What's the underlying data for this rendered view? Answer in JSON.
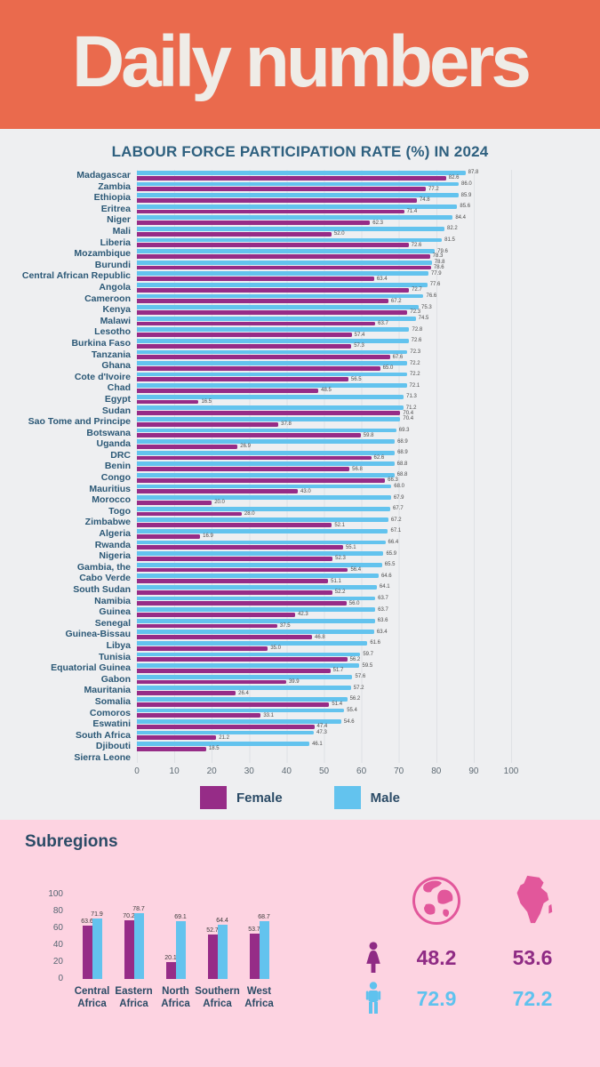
{
  "header": {
    "title": "Daily numbers"
  },
  "colors": {
    "banner_orange": "#EA6A4D",
    "female": "#962C87",
    "male": "#63C3EE",
    "chart_bg": "#EEEFF1",
    "pink_bg": "#FDD3E1",
    "icon_pink": "#E2579B",
    "heading_blue": "#2B4B66"
  },
  "icons": {
    "globe-icon": "globe with landmasses",
    "africa-icon": "africa continent silhouette",
    "woman-icon": "female pictogram",
    "man-icon": "male pictogram"
  },
  "chart_data": [
    {
      "type": "bar",
      "orientation": "horizontal",
      "title": "LABOUR FORCE PARTICIPATION RATE (%) IN 2024",
      "xlim": [
        0,
        100
      ],
      "x_ticks": [
        0,
        10,
        20,
        30,
        40,
        50,
        60,
        70,
        80,
        90,
        100
      ],
      "grid": true,
      "legend_position": "bottom",
      "categories": [
        "Madagascar",
        "Zambia",
        "Ethiopia",
        "Eritrea",
        "Niger",
        "Mali",
        "Liberia",
        "Mozambique",
        "Burundi",
        "Central African Republic",
        "Angola",
        "Cameroon",
        "Kenya",
        "Malawi",
        "Lesotho",
        "Burkina Faso",
        "Tanzania",
        "Ghana",
        "Cote d'Ivoire",
        "Chad",
        "Egypt",
        "Sudan",
        "Sao Tome and Principe",
        "Botswana",
        "Uganda",
        "DRC",
        "Benin",
        "Congo",
        "Mauritius",
        "Morocco",
        "Togo",
        "Zimbabwe",
        "Algeria",
        "Rwanda",
        "Nigeria",
        "Gambia, the",
        "Cabo Verde",
        "South Sudan",
        "Namibia",
        "Guinea",
        "Senegal",
        "Guinea-Bissau",
        "Libya",
        "Tunisia",
        "Equatorial Guinea",
        "Gabon",
        "Mauritania",
        "Somalia",
        "Comoros",
        "Eswatini",
        "South Africa",
        "Djibouti",
        "Sierra Leone"
      ],
      "series": [
        {
          "name": "Male",
          "color": "#63C3EE",
          "values": [
            87.8,
            86.0,
            85.9,
            85.6,
            84.4,
            82.2,
            81.5,
            79.6,
            78.8,
            77.9,
            77.6,
            76.6,
            75.3,
            74.5,
            72.8,
            72.6,
            72.3,
            72.2,
            72.2,
            72.1,
            71.3,
            71.2,
            70.4,
            69.3,
            68.9,
            68.9,
            68.8,
            68.8,
            68.0,
            67.9,
            67.7,
            67.2,
            67.1,
            66.4,
            65.9,
            65.5,
            64.6,
            64.1,
            63.7,
            63.7,
            63.6,
            63.4,
            61.6,
            59.7,
            59.5,
            57.6,
            57.2,
            56.2,
            55.4,
            54.6,
            47.3,
            46.1,
            null
          ]
        },
        {
          "name": "Female",
          "color": "#962C87",
          "values": [
            82.6,
            77.2,
            74.8,
            71.4,
            62.3,
            52.0,
            72.6,
            78.3,
            78.6,
            63.4,
            72.7,
            67.2,
            72.3,
            63.7,
            57.4,
            57.3,
            67.6,
            65.0,
            56.5,
            48.5,
            16.5,
            70.4,
            37.8,
            59.8,
            26.9,
            62.6,
            56.8,
            66.3,
            43.0,
            20.0,
            28.0,
            52.1,
            16.9,
            55.1,
            52.3,
            56.4,
            51.1,
            52.2,
            56.0,
            42.3,
            37.5,
            46.8,
            35.0,
            56.2,
            51.7,
            39.9,
            26.4,
            51.4,
            33.1,
            47.4,
            21.2,
            18.5,
            null
          ]
        }
      ]
    },
    {
      "type": "bar",
      "orientation": "vertical",
      "title": "Subregions",
      "ylim": [
        0,
        100
      ],
      "y_ticks": [
        0,
        20,
        40,
        60,
        80,
        100
      ],
      "grid": false,
      "categories": [
        "Central Africa",
        "Eastern Africa",
        "North Africa",
        "Southern Africa",
        "West Africa"
      ],
      "series": [
        {
          "name": "Female",
          "color": "#962C87",
          "values": [
            63.6,
            70.2,
            20.1,
            52.7,
            53.7
          ]
        },
        {
          "name": "Male",
          "color": "#63C3EE",
          "values": [
            71.9,
            78.7,
            69.1,
            64.4,
            68.7
          ]
        }
      ]
    }
  ],
  "subregions": {
    "heading": "Subregions",
    "stats": {
      "world_female": "48.2",
      "africa_female": "53.6",
      "world_male": "72.9",
      "africa_male": "72.2"
    }
  }
}
